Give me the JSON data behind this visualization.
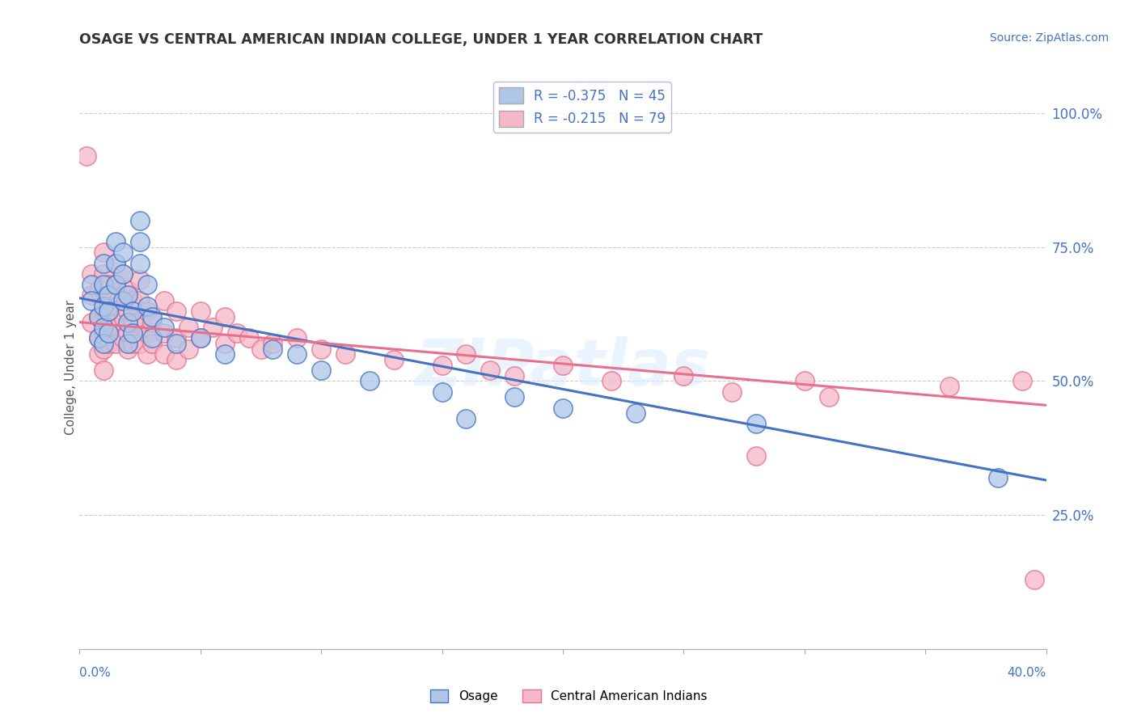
{
  "title": "OSAGE VS CENTRAL AMERICAN INDIAN COLLEGE, UNDER 1 YEAR CORRELATION CHART",
  "source": "Source: ZipAtlas.com",
  "ylabel": "College, Under 1 year",
  "r_osage": -0.375,
  "n_osage": 45,
  "r_central": -0.215,
  "n_central": 79,
  "osage_color": "#aec6e8",
  "central_color": "#f5b8c8",
  "osage_line_color": "#4472c4",
  "central_line_color": "#e8708a",
  "xlim": [
    0.0,
    0.4
  ],
  "ylim": [
    0.0,
    1.05
  ],
  "osage_scatter": [
    [
      0.005,
      0.68
    ],
    [
      0.005,
      0.65
    ],
    [
      0.008,
      0.62
    ],
    [
      0.008,
      0.58
    ],
    [
      0.01,
      0.72
    ],
    [
      0.01,
      0.68
    ],
    [
      0.01,
      0.64
    ],
    [
      0.01,
      0.6
    ],
    [
      0.01,
      0.57
    ],
    [
      0.012,
      0.66
    ],
    [
      0.012,
      0.63
    ],
    [
      0.012,
      0.59
    ],
    [
      0.015,
      0.76
    ],
    [
      0.015,
      0.72
    ],
    [
      0.015,
      0.68
    ],
    [
      0.018,
      0.74
    ],
    [
      0.018,
      0.7
    ],
    [
      0.018,
      0.65
    ],
    [
      0.02,
      0.66
    ],
    [
      0.02,
      0.61
    ],
    [
      0.02,
      0.57
    ],
    [
      0.022,
      0.63
    ],
    [
      0.022,
      0.59
    ],
    [
      0.025,
      0.8
    ],
    [
      0.025,
      0.76
    ],
    [
      0.025,
      0.72
    ],
    [
      0.028,
      0.68
    ],
    [
      0.028,
      0.64
    ],
    [
      0.03,
      0.62
    ],
    [
      0.03,
      0.58
    ],
    [
      0.035,
      0.6
    ],
    [
      0.04,
      0.57
    ],
    [
      0.05,
      0.58
    ],
    [
      0.06,
      0.55
    ],
    [
      0.08,
      0.56
    ],
    [
      0.09,
      0.55
    ],
    [
      0.1,
      0.52
    ],
    [
      0.12,
      0.5
    ],
    [
      0.15,
      0.48
    ],
    [
      0.16,
      0.43
    ],
    [
      0.18,
      0.47
    ],
    [
      0.2,
      0.45
    ],
    [
      0.23,
      0.44
    ],
    [
      0.28,
      0.42
    ],
    [
      0.38,
      0.32
    ]
  ],
  "central_scatter": [
    [
      0.003,
      0.92
    ],
    [
      0.005,
      0.7
    ],
    [
      0.005,
      0.66
    ],
    [
      0.005,
      0.61
    ],
    [
      0.008,
      0.67
    ],
    [
      0.008,
      0.62
    ],
    [
      0.008,
      0.58
    ],
    [
      0.008,
      0.55
    ],
    [
      0.01,
      0.74
    ],
    [
      0.01,
      0.7
    ],
    [
      0.01,
      0.67
    ],
    [
      0.01,
      0.63
    ],
    [
      0.01,
      0.59
    ],
    [
      0.01,
      0.56
    ],
    [
      0.01,
      0.52
    ],
    [
      0.012,
      0.68
    ],
    [
      0.012,
      0.64
    ],
    [
      0.012,
      0.6
    ],
    [
      0.012,
      0.57
    ],
    [
      0.015,
      0.72
    ],
    [
      0.015,
      0.68
    ],
    [
      0.015,
      0.64
    ],
    [
      0.015,
      0.6
    ],
    [
      0.015,
      0.57
    ],
    [
      0.018,
      0.7
    ],
    [
      0.018,
      0.66
    ],
    [
      0.018,
      0.62
    ],
    [
      0.018,
      0.58
    ],
    [
      0.02,
      0.67
    ],
    [
      0.02,
      0.63
    ],
    [
      0.02,
      0.59
    ],
    [
      0.02,
      0.56
    ],
    [
      0.022,
      0.65
    ],
    [
      0.022,
      0.61
    ],
    [
      0.022,
      0.57
    ],
    [
      0.025,
      0.69
    ],
    [
      0.025,
      0.65
    ],
    [
      0.025,
      0.61
    ],
    [
      0.025,
      0.57
    ],
    [
      0.028,
      0.63
    ],
    [
      0.028,
      0.59
    ],
    [
      0.028,
      0.55
    ],
    [
      0.03,
      0.61
    ],
    [
      0.03,
      0.57
    ],
    [
      0.035,
      0.65
    ],
    [
      0.035,
      0.59
    ],
    [
      0.035,
      0.55
    ],
    [
      0.04,
      0.63
    ],
    [
      0.04,
      0.58
    ],
    [
      0.04,
      0.54
    ],
    [
      0.045,
      0.6
    ],
    [
      0.045,
      0.56
    ],
    [
      0.05,
      0.63
    ],
    [
      0.05,
      0.58
    ],
    [
      0.055,
      0.6
    ],
    [
      0.06,
      0.62
    ],
    [
      0.06,
      0.57
    ],
    [
      0.065,
      0.59
    ],
    [
      0.07,
      0.58
    ],
    [
      0.075,
      0.56
    ],
    [
      0.08,
      0.57
    ],
    [
      0.09,
      0.58
    ],
    [
      0.1,
      0.56
    ],
    [
      0.11,
      0.55
    ],
    [
      0.13,
      0.54
    ],
    [
      0.15,
      0.53
    ],
    [
      0.16,
      0.55
    ],
    [
      0.17,
      0.52
    ],
    [
      0.18,
      0.51
    ],
    [
      0.2,
      0.53
    ],
    [
      0.22,
      0.5
    ],
    [
      0.25,
      0.51
    ],
    [
      0.27,
      0.48
    ],
    [
      0.3,
      0.5
    ],
    [
      0.31,
      0.47
    ],
    [
      0.36,
      0.49
    ],
    [
      0.39,
      0.5
    ],
    [
      0.395,
      0.13
    ],
    [
      0.28,
      0.36
    ]
  ]
}
